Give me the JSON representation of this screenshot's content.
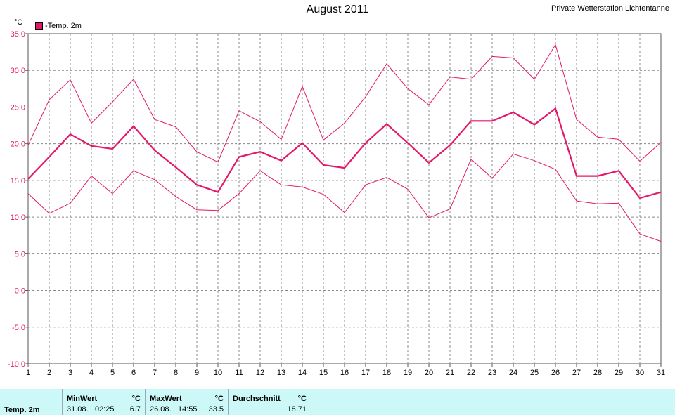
{
  "title": "August 2011",
  "station": "Private Wetterstation Lichtentanne",
  "chart_data": {
    "type": "line",
    "unit": "°C",
    "x": [
      1,
      2,
      3,
      4,
      5,
      6,
      7,
      8,
      9,
      10,
      11,
      12,
      13,
      14,
      15,
      16,
      17,
      18,
      19,
      20,
      21,
      22,
      23,
      24,
      25,
      26,
      27,
      28,
      29,
      30,
      31
    ],
    "ylim": [
      -10,
      35
    ],
    "yticks": [
      "35.0",
      "30.0",
      "25.0",
      "20.0",
      "15.0",
      "10.0",
      "5.0",
      "0.0",
      "-5.0",
      "-10.0"
    ],
    "grid": true,
    "legend_position": "top-left",
    "series": [
      {
        "name": "-Temp. 2m",
        "role": "mean",
        "color": "#e4186a",
        "values": [
          15.2,
          18.2,
          21.3,
          19.7,
          19.3,
          22.4,
          19.1,
          16.8,
          14.4,
          13.4,
          18.2,
          18.9,
          17.7,
          20.1,
          17.1,
          16.7,
          20.1,
          22.7,
          20.1,
          17.4,
          19.8,
          23.1,
          23.1,
          24.3,
          22.6,
          24.8,
          15.6,
          15.6,
          16.3,
          12.6,
          13.4
        ]
      },
      {
        "role": "max",
        "color": "#e4186a",
        "values": [
          19.8,
          26.0,
          28.7,
          22.8,
          25.7,
          28.8,
          23.3,
          22.3,
          18.9,
          17.5,
          24.5,
          23.0,
          20.6,
          27.8,
          20.5,
          22.8,
          26.4,
          30.9,
          27.5,
          25.3,
          29.1,
          28.8,
          31.9,
          31.7,
          28.8,
          33.5,
          23.3,
          20.9,
          20.6,
          17.6,
          20.2
        ]
      },
      {
        "role": "min",
        "color": "#e4186a",
        "values": [
          13.2,
          10.5,
          11.9,
          15.6,
          13.2,
          16.3,
          15.1,
          12.8,
          11.0,
          10.9,
          13.2,
          16.3,
          14.4,
          14.1,
          13.1,
          10.6,
          14.4,
          15.4,
          13.8,
          9.9,
          11.1,
          17.9,
          15.3,
          18.6,
          17.7,
          16.5,
          12.2,
          11.8,
          11.9,
          7.7,
          6.7
        ]
      }
    ]
  },
  "stats": {
    "row_label": "Temp. 2m",
    "min": {
      "header": "MinWert",
      "unit": "°C",
      "date": "31.08.",
      "time": "02:25",
      "value": "6.7"
    },
    "max": {
      "header": "MaxWert",
      "unit": "°C",
      "date": "26.08.",
      "time": "14:55",
      "value": "33.5"
    },
    "avg": {
      "header": "Durchschnitt",
      "unit": "°C",
      "value": "18.71"
    }
  }
}
